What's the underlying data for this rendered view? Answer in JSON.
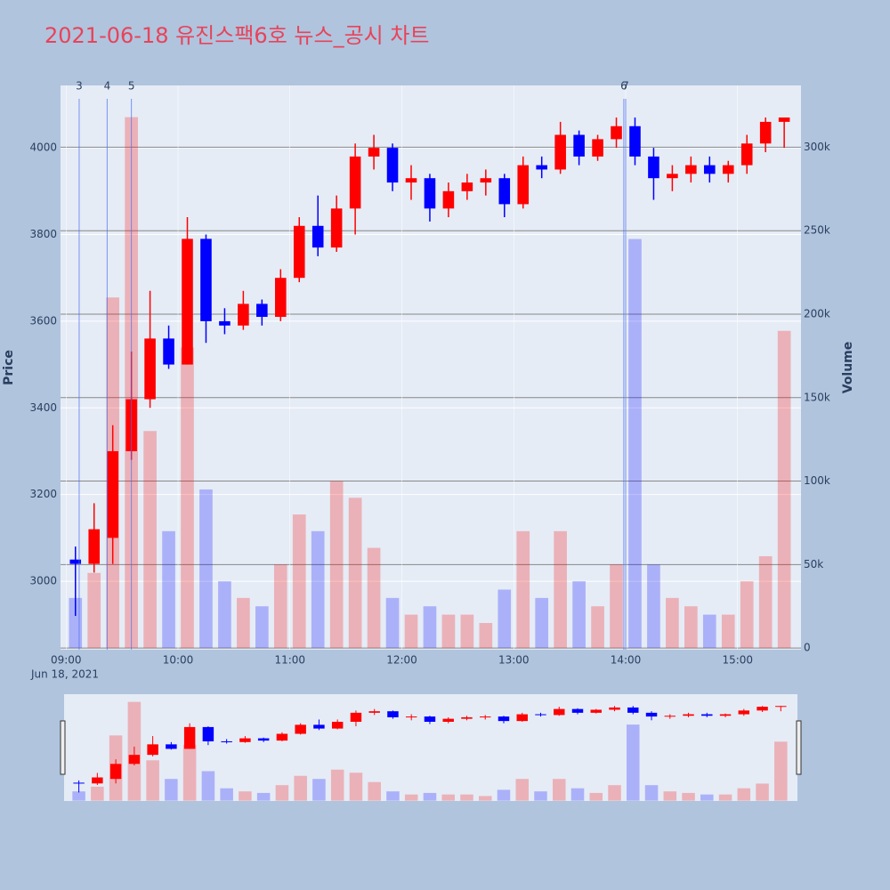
{
  "chart_data": {
    "type": "candlestick",
    "title": "2021-06-18 유진스팩6호 뉴스_공시 차트",
    "x": [
      "09:00",
      "09:10",
      "09:20",
      "09:30",
      "09:40",
      "09:50",
      "10:00",
      "10:10",
      "10:20",
      "10:30",
      "10:40",
      "10:50",
      "11:00",
      "11:10",
      "11:20",
      "11:30",
      "11:40",
      "11:50",
      "12:00",
      "12:10",
      "12:20",
      "12:30",
      "12:40",
      "12:50",
      "13:00",
      "13:10",
      "13:20",
      "13:30",
      "13:40",
      "13:50",
      "14:00",
      "14:10",
      "14:20",
      "14:30",
      "14:40",
      "14:50",
      "15:00",
      "15:10",
      "15:20"
    ],
    "open": [
      3050,
      3040,
      3100,
      3300,
      3420,
      3560,
      3500,
      3790,
      3600,
      3590,
      3640,
      3610,
      3700,
      3820,
      3770,
      3860,
      3980,
      4000,
      3920,
      3930,
      3860,
      3900,
      3920,
      3930,
      3870,
      3960,
      3950,
      4030,
      3980,
      4020,
      4050,
      3980,
      3930,
      3940,
      3960,
      3940,
      3960,
      4010,
      4060
    ],
    "high": [
      3080,
      3180,
      3360,
      3530,
      3670,
      3590,
      3840,
      3800,
      3630,
      3670,
      3650,
      3720,
      3840,
      3890,
      3890,
      4010,
      4030,
      4010,
      3960,
      3940,
      3920,
      3940,
      3950,
      3940,
      3980,
      3980,
      4060,
      4040,
      4030,
      4070,
      4070,
      4000,
      3960,
      3980,
      3980,
      3970,
      4030,
      4070,
      4070
    ],
    "low": [
      2920,
      3020,
      3040,
      3280,
      3400,
      3490,
      3500,
      3550,
      3570,
      3580,
      3590,
      3600,
      3690,
      3750,
      3760,
      3800,
      3950,
      3900,
      3880,
      3830,
      3840,
      3880,
      3890,
      3840,
      3860,
      3930,
      3940,
      3960,
      3970,
      4000,
      3960,
      3880,
      3900,
      3920,
      3920,
      3920,
      3940,
      3990,
      4000
    ],
    "close": [
      3040,
      3120,
      3300,
      3420,
      3560,
      3500,
      3790,
      3600,
      3590,
      3640,
      3610,
      3700,
      3820,
      3770,
      3860,
      3980,
      4000,
      3920,
      3930,
      3860,
      3900,
      3920,
      3930,
      3870,
      3960,
      3950,
      4030,
      3980,
      4020,
      4050,
      3980,
      3930,
      3940,
      3960,
      3940,
      3960,
      4010,
      4060,
      4070
    ],
    "volume": [
      30000,
      45000,
      210000,
      318000,
      130000,
      70000,
      180000,
      95000,
      40000,
      30000,
      25000,
      50000,
      80000,
      70000,
      100000,
      90000,
      60000,
      30000,
      20000,
      25000,
      20000,
      20000,
      15000,
      35000,
      70000,
      30000,
      70000,
      40000,
      25000,
      50000,
      245000,
      50000,
      30000,
      25000,
      20000,
      20000,
      40000,
      55000,
      190000
    ],
    "up_color": "#ff0000",
    "down_color": "#0000ff",
    "xlim": [
      "08:57",
      "15:34"
    ],
    "xticks": [
      "09:00",
      "10:00",
      "11:00",
      "12:00",
      "13:00",
      "14:00",
      "15:00"
    ],
    "x_date_label": "Jun 18, 2021",
    "ylabel": "Price",
    "ylim": [
      2842,
      4144
    ],
    "yticks": [
      3000,
      3200,
      3400,
      3600,
      3800,
      4000
    ],
    "y2label": "Volume",
    "y2lim": [
      -1000,
      337000
    ],
    "y2ticks": [
      0,
      {
        "value": 50000,
        "label": "50k"
      },
      {
        "value": 100000,
        "label": "100k"
      },
      {
        "value": 150000,
        "label": "150k"
      },
      {
        "value": 200000,
        "label": "200k"
      },
      {
        "value": 250000,
        "label": "250k"
      },
      {
        "value": 300000,
        "label": "300k"
      }
    ],
    "annotations": [
      {
        "x": "09:07",
        "label": "3"
      },
      {
        "x": "09:22",
        "label": "4"
      },
      {
        "x": "09:35",
        "label": "5"
      },
      {
        "x": "13:59",
        "label": "6"
      },
      {
        "x": "14:00",
        "label": "7"
      }
    ],
    "annotation_color": "#4a6cf0"
  }
}
